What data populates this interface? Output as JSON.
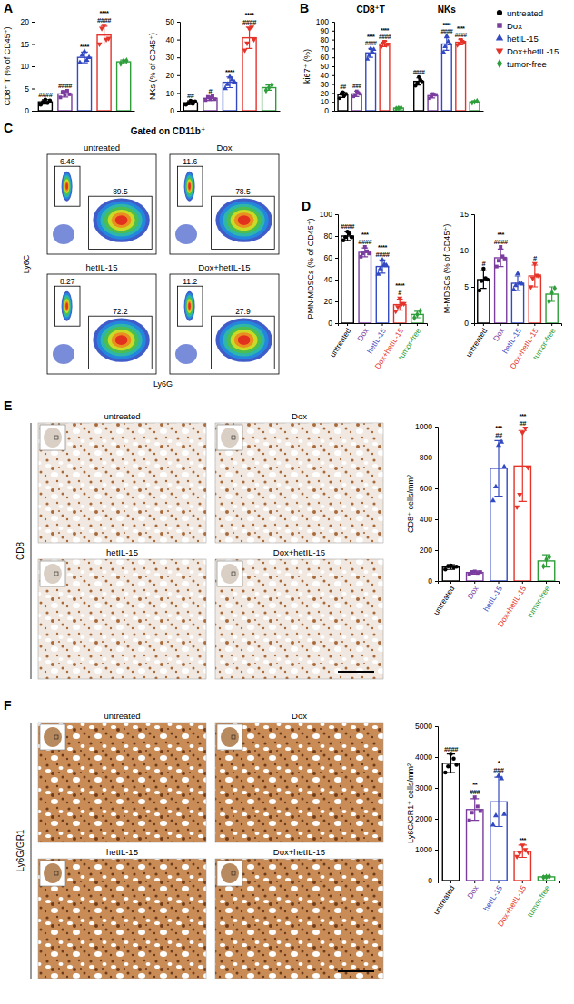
{
  "chart_data": [
    {
      "type": "bar",
      "panel": "A",
      "y_label": "CD8⁺ T (% of CD45⁺)",
      "categories": [
        null,
        null,
        null,
        null,
        null
      ],
      "tick_labels": "y",
      "values": [
        2.0,
        3.8,
        12.0,
        17.0,
        11.0
      ],
      "errors": [
        0.5,
        0.7,
        1.2,
        2.0,
        0.4
      ],
      "points": [
        [
          1.4,
          2.0,
          2.5,
          1.8,
          2.3
        ],
        [
          3.0,
          4.2,
          3.6,
          4.5,
          3.7
        ],
        [
          10.8,
          12.5,
          13.3,
          11.4,
          12.0
        ],
        [
          15.0,
          18.5,
          19.2,
          16.0,
          16.3
        ],
        [
          10.6,
          11.2,
          11.3
        ]
      ],
      "colors": [
        "#000000",
        "#7a3d9e",
        "#3349c2",
        "#e5332a",
        "#2e9e3a"
      ],
      "markers": [
        "circle",
        "square",
        "triangle",
        "triangle-down",
        "diamond"
      ],
      "annotations": [
        [
          "####"
        ],
        [
          "####"
        ],
        [
          "****"
        ],
        [
          "****",
          "####"
        ],
        []
      ],
      "ylim": [
        0,
        20
      ],
      "yticks": [
        0,
        5,
        10,
        15,
        20
      ]
    },
    {
      "type": "bar",
      "y_label": "NKs (% of CD45⁺)",
      "categories": [
        null,
        null,
        null,
        null,
        null
      ],
      "tick_labels": "y",
      "values": [
        4.5,
        7.0,
        16,
        41,
        13
      ],
      "errors": [
        1.0,
        1.2,
        3.0,
        6.0,
        1.5
      ],
      "points": [
        [
          3.5,
          4.2,
          5.6,
          4.0,
          5.2
        ],
        [
          6.0,
          7.8,
          6.5,
          8.2,
          6.5
        ],
        [
          12.5,
          14.8,
          19.0,
          17.5,
          16.2
        ],
        [
          34,
          38,
          46,
          47,
          40
        ],
        [
          11.5,
          13.0,
          14.5
        ]
      ],
      "colors": [
        "#000000",
        "#7a3d9e",
        "#3349c2",
        "#e5332a",
        "#2e9e3a"
      ],
      "markers": [
        "circle",
        "square",
        "triangle",
        "triangle-down",
        "diamond"
      ],
      "annotations": [
        [
          "##"
        ],
        [
          "#"
        ],
        [
          "****"
        ],
        [
          "****",
          "####"
        ],
        []
      ],
      "ylim": [
        0,
        50
      ],
      "yticks": [
        0,
        10,
        20,
        30,
        40,
        50
      ]
    },
    {
      "type": "bar",
      "panel": "B",
      "y_label": "ki67⁺ (%)",
      "categories": [
        "CD8⁺T",
        "NKs"
      ],
      "tick_labels": "y",
      "legend": "right",
      "series": [
        {
          "name": "untreated",
          "color": "#000000",
          "marker": "circle",
          "values": [
            18,
            33
          ],
          "errors": [
            3,
            4
          ],
          "points": [
            [
              14,
              19,
              21,
              17,
              19
            ],
            [
              28,
              31,
              38,
              35,
              33
            ]
          ],
          "annotations": [
            [
              "##"
            ],
            [
              "####"
            ]
          ]
        },
        {
          "name": "Dox",
          "color": "#7a3d9e",
          "marker": "square",
          "values": [
            19,
            17
          ],
          "errors": [
            3,
            2.5
          ],
          "points": [
            [
              16,
              18,
              22,
              20,
              19
            ],
            [
              14,
              16,
              19,
              18,
              18
            ]
          ],
          "annotations": [
            [
              "###"
            ],
            []
          ]
        },
        {
          "name": "hetIL-15",
          "color": "#3349c2",
          "marker": "triangle",
          "values": [
            65,
            75
          ],
          "errors": [
            5,
            7
          ],
          "points": [
            [
              58,
              62,
              70,
              66,
              69
            ],
            [
              66,
              72,
              84,
              78,
              75
            ]
          ],
          "annotations": [
            [
              "****",
              "####"
            ],
            [
              "****",
              "####"
            ]
          ]
        },
        {
          "name": "Dox+hetIL-15",
          "color": "#e5332a",
          "marker": "triangle-down",
          "values": [
            75,
            77
          ],
          "errors": [
            3,
            3
          ],
          "points": [
            [
              72,
              76,
              78,
              74,
              75
            ],
            [
              74,
              76,
              80,
              78,
              77
            ]
          ],
          "annotations": [
            [
              "****",
              "####"
            ],
            [
              "****",
              "####"
            ]
          ]
        },
        {
          "name": "tumor-free",
          "color": "#2e9e3a",
          "marker": "diamond",
          "values": [
            3,
            10
          ],
          "errors": [
            1,
            1
          ],
          "points": [
            [
              2.5,
              3,
              3.5
            ],
            [
              9,
              10,
              11
            ]
          ],
          "annotations": [
            [],
            []
          ]
        }
      ],
      "ylim": [
        0,
        100
      ],
      "yticks": [
        0,
        10,
        20,
        30,
        40,
        50,
        60,
        70,
        80,
        90,
        100
      ]
    },
    {
      "type": "flow",
      "panel": "C",
      "subtitle": "Gated on CD11b⁺",
      "x_label": "Ly6G",
      "y_label": "Ly6C",
      "plots": [
        {
          "title": "untreated",
          "gates": [
            6.46,
            89.5
          ]
        },
        {
          "title": "Dox",
          "gates": [
            11.6,
            78.5
          ]
        },
        {
          "title": "hetIL-15",
          "gates": [
            8.27,
            72.2
          ]
        },
        {
          "title": "Dox+hetIL-15",
          "gates": [
            11.2,
            27.9
          ]
        }
      ]
    },
    {
      "type": "bar",
      "panel": "D",
      "y_label": "PMN-MDSCs (% of CD45⁺)",
      "categories": [
        "untreated",
        "Dox",
        "hetIL-15",
        "Dox+hetIL-15",
        "tumor-free"
      ],
      "values": [
        80,
        65,
        52,
        17,
        8
      ],
      "errors": [
        4,
        4,
        6,
        5,
        3
      ],
      "points": [
        [
          76,
          79,
          84,
          82,
          79
        ],
        [
          61,
          64,
          70,
          66,
          64
        ],
        [
          45,
          50,
          58,
          54,
          53
        ],
        [
          11,
          15,
          23,
          18,
          18
        ],
        [
          5,
          8,
          11
        ]
      ],
      "colors": [
        "#000000",
        "#7a3d9e",
        "#3349c2",
        "#e5332a",
        "#2e9e3a"
      ],
      "markers": [
        "circle",
        "square",
        "triangle",
        "triangle-down",
        "diamond"
      ],
      "annotations": [
        [
          "####"
        ],
        [
          "***",
          "####"
        ],
        [
          "****",
          "####"
        ],
        [
          "****",
          "#"
        ],
        []
      ],
      "ylim": [
        0,
        100
      ],
      "yticks": [
        0,
        20,
        40,
        60,
        80,
        100
      ]
    },
    {
      "type": "bar",
      "y_label": "M-MDSCs (% of CD45⁺)",
      "categories": [
        "untreated",
        "Dox",
        "hetIL-15",
        "Dox+hetIL-15",
        "tumor-free"
      ],
      "values": [
        6,
        9,
        5.5,
        6.5,
        4
      ],
      "errors": [
        1.2,
        1.2,
        1.0,
        1.5,
        1.0
      ],
      "points": [
        [
          4.5,
          5.8,
          7.5,
          6.2,
          6.0
        ],
        [
          7.8,
          8.6,
          10.5,
          9.2,
          8.9
        ],
        [
          4.6,
          5.2,
          6.8,
          5.5,
          5.4
        ],
        [
          5.0,
          6.2,
          8.2,
          6.6,
          6.5
        ],
        [
          3.0,
          4.2,
          4.8
        ]
      ],
      "colors": [
        "#000000",
        "#7a3d9e",
        "#3349c2",
        "#e5332a",
        "#2e9e3a"
      ],
      "markers": [
        "circle",
        "square",
        "triangle",
        "triangle-down",
        "diamond"
      ],
      "annotations": [
        [
          "#"
        ],
        [
          "***",
          "####"
        ],
        [],
        [
          "#"
        ],
        []
      ],
      "ylim": [
        0,
        15
      ],
      "yticks": [
        0,
        5,
        10,
        15
      ]
    },
    {
      "type": "image_grid",
      "panel": "E",
      "stain": "CD8",
      "images": [
        "untreated",
        "Dox",
        "hetIL-15",
        "Dox+hetIL-15"
      ]
    },
    {
      "type": "bar",
      "y_label": "CD8⁺ cells/mm²",
      "categories": [
        "untreated",
        "Dox",
        "hetIL-15",
        "Dox+hetIL-15",
        "tumor-free"
      ],
      "values": [
        90,
        55,
        730,
        745,
        130
      ],
      "errors": [
        15,
        10,
        180,
        230,
        40
      ],
      "points": [
        [
          75,
          95,
          100,
          88,
          92
        ],
        [
          45,
          58,
          62,
          52,
          58
        ],
        [
          520,
          610,
          880,
          900,
          740
        ],
        [
          480,
          560,
          960,
          990,
          735
        ],
        [
          95,
          140,
          155
        ]
      ],
      "colors": [
        "#000000",
        "#7a3d9e",
        "#3349c2",
        "#e5332a",
        "#2e9e3a"
      ],
      "markers": [
        "circle",
        "square",
        "triangle",
        "triangle-down",
        "diamond"
      ],
      "annotations": [
        [],
        [],
        [
          "***",
          "##"
        ],
        [
          "***",
          "##"
        ],
        []
      ],
      "ylim": [
        0,
        1000
      ],
      "yticks": [
        0,
        200,
        400,
        600,
        800,
        1000
      ]
    },
    {
      "type": "image_grid",
      "panel": "F",
      "stain": "Ly6G/GR1",
      "images": [
        "untreated",
        "Dox",
        "hetIL-15",
        "Dox+hetIL-15"
      ]
    },
    {
      "type": "bar",
      "y_label": "Ly6G/GR1⁺ cells/mm²",
      "categories": [
        "untreated",
        "Dox",
        "hetIL-15",
        "Dox+hetIL-15",
        "tumor-free"
      ],
      "values": [
        3800,
        2300,
        2550,
        950,
        120
      ],
      "errors": [
        300,
        350,
        800,
        200,
        30
      ],
      "points": [
        [
          3500,
          3700,
          4100,
          3950,
          3750
        ],
        [
          1950,
          2200,
          2700,
          2400,
          2250
        ],
        [
          1800,
          2100,
          3400,
          3300,
          2150
        ],
        [
          780,
          900,
          1150,
          1000,
          920
        ],
        [
          100,
          120,
          140
        ]
      ],
      "colors": [
        "#000000",
        "#7a3d9e",
        "#3349c2",
        "#e5332a",
        "#2e9e3a"
      ],
      "markers": [
        "circle",
        "square",
        "triangle",
        "triangle-down",
        "diamond"
      ],
      "annotations": [
        [
          "####"
        ],
        [
          "**",
          "###"
        ],
        [
          "*",
          "###"
        ],
        [
          "***"
        ],
        []
      ],
      "ylim": [
        0,
        5000
      ],
      "yticks": [
        0,
        1000,
        2000,
        3000,
        4000,
        5000
      ]
    }
  ]
}
